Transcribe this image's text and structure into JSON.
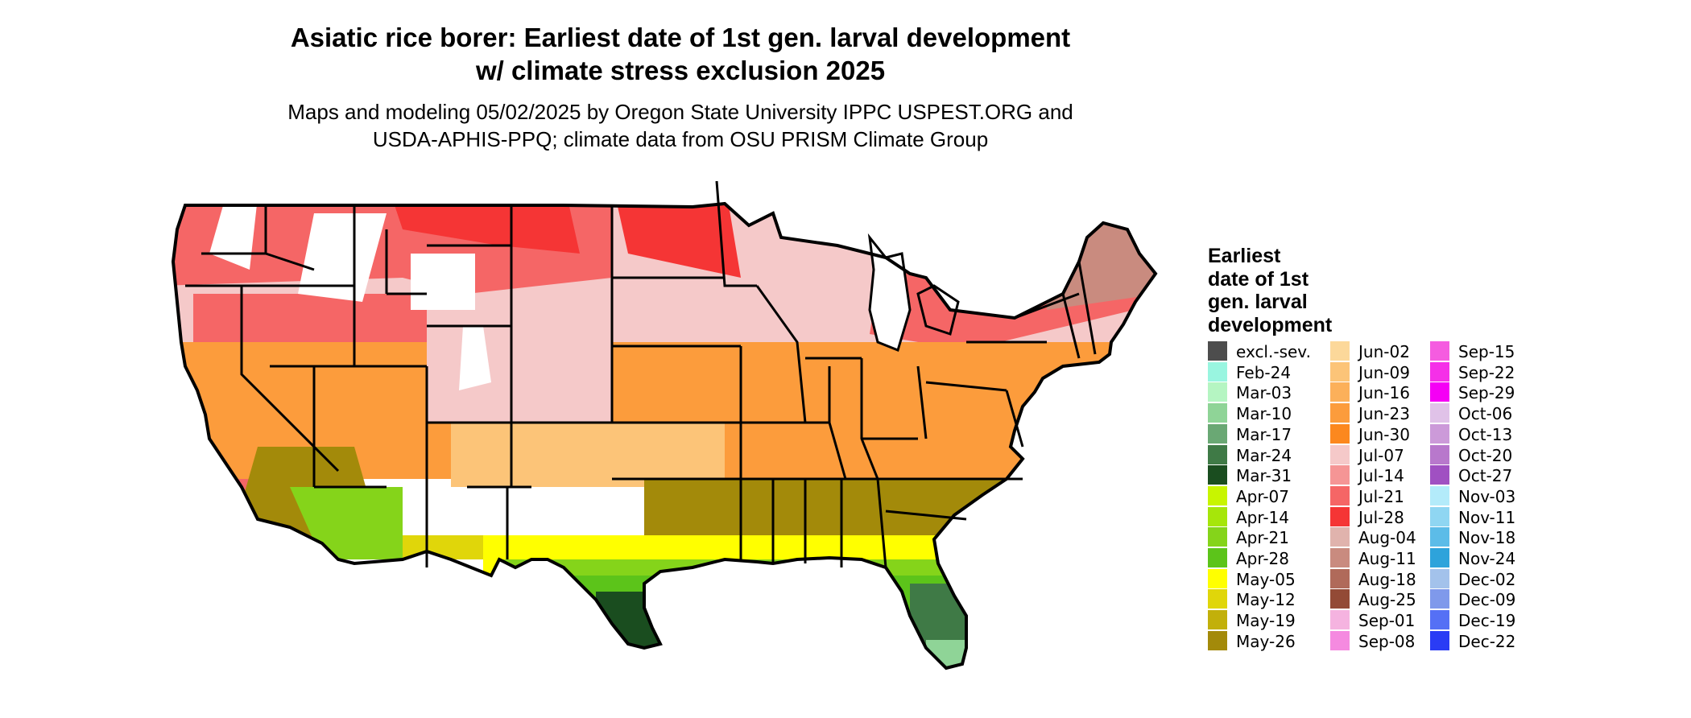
{
  "title_line1": "Asiatic rice borer: Earliest date of 1st gen. larval development",
  "title_line2": "w/ climate stress exclusion 2025",
  "subtitle_line1": "Maps and modeling 05/02/2025 by Oregon State University IPPC USPEST.ORG and",
  "subtitle_line2": "USDA-APHIS-PPQ; climate data from OSU PRISM Climate Group",
  "legend": {
    "title_lines": [
      "Earliest",
      "date of 1st",
      "gen. larval",
      "development"
    ],
    "columns": [
      [
        {
          "label": "excl.-sev.",
          "color": "#4d4d4d"
        },
        {
          "label": "Feb-24",
          "color": "#99f5e0"
        },
        {
          "label": "Mar-03",
          "color": "#b5f5c2"
        },
        {
          "label": "Mar-10",
          "color": "#8fd497"
        },
        {
          "label": "Mar-17",
          "color": "#6aa874"
        },
        {
          "label": "Mar-24",
          "color": "#3f7a46"
        },
        {
          "label": "Mar-31",
          "color": "#1a4d1f"
        },
        {
          "label": "Apr-07",
          "color": "#c8f500"
        },
        {
          "label": "Apr-14",
          "color": "#a6e60a"
        },
        {
          "label": "Apr-21",
          "color": "#85d41a"
        },
        {
          "label": "Apr-28",
          "color": "#5cc41a"
        },
        {
          "label": "May-05",
          "color": "#ffff00"
        },
        {
          "label": "May-12",
          "color": "#e0d60a"
        },
        {
          "label": "May-19",
          "color": "#c2b00a"
        },
        {
          "label": "May-26",
          "color": "#a38a0a"
        }
      ],
      [
        {
          "label": "Jun-02",
          "color": "#fcd89a"
        },
        {
          "label": "Jun-09",
          "color": "#fcc478"
        },
        {
          "label": "Jun-16",
          "color": "#fcb05a"
        },
        {
          "label": "Jun-23",
          "color": "#fc9c3c"
        },
        {
          "label": "Jun-30",
          "color": "#fc881e"
        },
        {
          "label": "Jul-07",
          "color": "#f5c9c9"
        },
        {
          "label": "Jul-14",
          "color": "#f59595"
        },
        {
          "label": "Jul-21",
          "color": "#f56666"
        },
        {
          "label": "Jul-28",
          "color": "#f53535"
        },
        {
          "label": "Aug-04",
          "color": "#e0b3ad"
        },
        {
          "label": "Aug-11",
          "color": "#c98b7f"
        },
        {
          "label": "Aug-18",
          "color": "#b06a5a"
        },
        {
          "label": "Aug-25",
          "color": "#934a36"
        },
        {
          "label": "Sep-01",
          "color": "#f5b3e0"
        },
        {
          "label": "Sep-08",
          "color": "#f58ae0"
        }
      ],
      [
        {
          "label": "Sep-15",
          "color": "#f55ce0"
        },
        {
          "label": "Sep-22",
          "color": "#f530e8"
        },
        {
          "label": "Sep-29",
          "color": "#f500f5"
        },
        {
          "label": "Oct-06",
          "color": "#e0c2e8"
        },
        {
          "label": "Oct-13",
          "color": "#cc9ad9"
        },
        {
          "label": "Oct-20",
          "color": "#b878cc"
        },
        {
          "label": "Oct-27",
          "color": "#a050c2"
        },
        {
          "label": "Nov-03",
          "color": "#b3ebfa"
        },
        {
          "label": "Nov-11",
          "color": "#8fd6f2"
        },
        {
          "label": "Nov-18",
          "color": "#5cbce8"
        },
        {
          "label": "Nov-24",
          "color": "#2ea3db"
        },
        {
          "label": "Dec-02",
          "color": "#a3c2eb"
        },
        {
          "label": "Dec-09",
          "color": "#7f99eb"
        },
        {
          "label": "Dec-19",
          "color": "#5570f5"
        },
        {
          "label": "Dec-22",
          "color": "#2a3cf5"
        }
      ]
    ]
  },
  "map_colors": {
    "outline": "#000000",
    "pink_light": "#f5c9c9",
    "red_mid": "#f56666",
    "red": "#f53535",
    "white": "#ffffff",
    "brown": "#c98b7f",
    "orange": "#fc9c3c",
    "orange_light": "#fcc478",
    "olive": "#a38a0a",
    "yellow": "#ffff00",
    "yellow_olive": "#e0d60a",
    "green": "#5cc41a",
    "green_light": "#85d41a",
    "dark_green": "#3f7a46",
    "darkest_green": "#1a4d1f",
    "mint": "#8fd497"
  }
}
